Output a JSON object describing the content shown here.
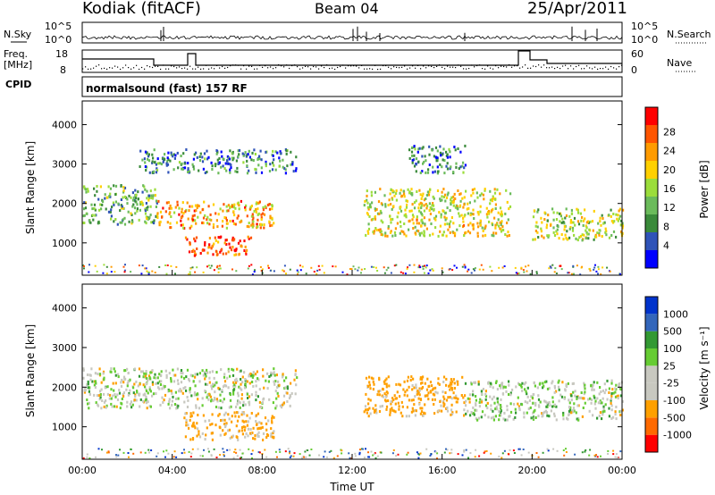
{
  "header": {
    "station": "Kodiak (fitACF)",
    "beam": "Beam 04",
    "date": "25/Apr/2011"
  },
  "noise_panel": {
    "left_label": "N.Sky",
    "right_label": "N.Search",
    "left_ticks": [
      "10^5",
      "10^0"
    ],
    "right_ticks": [
      "10^5",
      "10^0"
    ]
  },
  "freq_panel": {
    "left_label_1": "Freq.",
    "left_label_2": "[MHz]",
    "right_label": "Nave",
    "left_ticks": [
      "18",
      "8"
    ],
    "right_ticks": [
      "60",
      "0"
    ]
  },
  "cpid": {
    "label": "CPID",
    "text": "normalsound (fast) 157 RF"
  },
  "colors": {
    "power_scale": [
      "#0000ff",
      "#2f53b8",
      "#3a8a3a",
      "#6bbb5b",
      "#9bdd3b",
      "#ffd000",
      "#ff9b00",
      "#ff5500",
      "#ff0000"
    ],
    "velocity_scale": [
      "#ff0000",
      "#ff6a00",
      "#ffa000",
      "#c8c8c0",
      "#c8c8c0",
      "#66cc33",
      "#339933",
      "#3366bb",
      "#0033cc"
    ]
  },
  "chart_data": [
    {
      "type": "heatmap",
      "name": "power",
      "ylabel": "Slant Range [km]",
      "yticks": [
        "4000",
        "3000",
        "2000",
        "1000"
      ],
      "ylim": [
        180,
        4600
      ],
      "xlim": [
        "00:00",
        "24:00"
      ],
      "colorbar": {
        "label": "Power [dB]",
        "ticks": [
          "28",
          "24",
          "20",
          "16",
          "12",
          "8",
          "4"
        ],
        "range": [
          0,
          32
        ]
      },
      "regions": [
        {
          "t0": 0.0,
          "t1": 3.3,
          "r0": 1500,
          "r1": 2500,
          "level": 12
        },
        {
          "t0": 3.3,
          "t1": 8.5,
          "r0": 1400,
          "r1": 2100,
          "level": 22
        },
        {
          "t0": 4.5,
          "t1": 7.5,
          "r0": 700,
          "r1": 1200,
          "level": 28
        },
        {
          "t0": 2.5,
          "t1": 9.5,
          "r0": 2800,
          "r1": 3400,
          "level": 8
        },
        {
          "t0": 12.5,
          "t1": 19.0,
          "r0": 1200,
          "r1": 2400,
          "level": 18
        },
        {
          "t0": 14.5,
          "t1": 17.0,
          "r0": 2800,
          "r1": 3500,
          "level": 8
        },
        {
          "t0": 20.0,
          "t1": 24.0,
          "r0": 1100,
          "r1": 1900,
          "level": 16
        }
      ]
    },
    {
      "type": "heatmap",
      "name": "velocity",
      "ylabel": "Slant Range [km]",
      "yticks": [
        "4000",
        "3000",
        "2000",
        "1000"
      ],
      "ylim": [
        180,
        4600
      ],
      "xlim": [
        "00:00",
        "24:00"
      ],
      "xlabel": "Time UT",
      "xticks": [
        "00:00",
        "04:00",
        "08:00",
        "12:00",
        "16:00",
        "20:00",
        "00:00"
      ],
      "colorbar": {
        "label": "Velocity [m s⁻¹]",
        "ticks": [
          "1000",
          "500",
          "100",
          "25",
          "-25",
          "-100",
          "-500",
          "-1000"
        ],
        "range": [
          -1200,
          1200
        ]
      },
      "regions": [
        {
          "t0": 0.0,
          "t1": 9.5,
          "r0": 1500,
          "r1": 2500,
          "level": 0
        },
        {
          "t0": 4.5,
          "t1": 8.5,
          "r0": 700,
          "r1": 1400,
          "level": -150
        },
        {
          "t0": 12.5,
          "t1": 17.0,
          "r0": 1300,
          "r1": 2300,
          "level": -200
        },
        {
          "t0": 17.0,
          "t1": 24.0,
          "r0": 1200,
          "r1": 2200,
          "level": 0
        }
      ]
    }
  ]
}
